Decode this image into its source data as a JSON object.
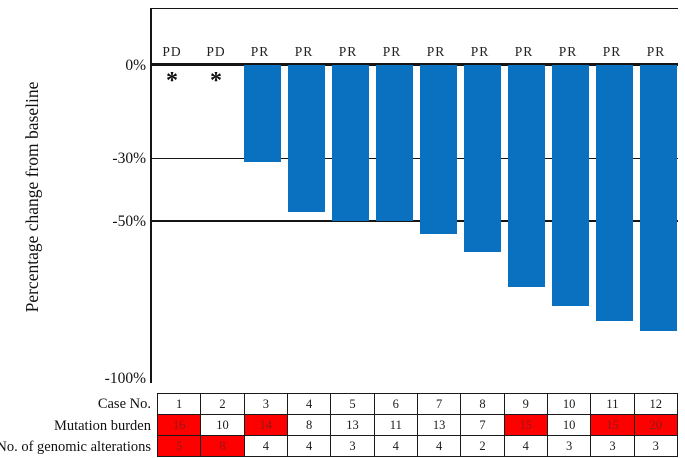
{
  "chart": {
    "y_axis_label": "Percentage change from baseline",
    "y_ticks": [
      {
        "label": "0%",
        "value": 0
      },
      {
        "label": "-30%",
        "value": -30
      },
      {
        "label": "-50%",
        "value": -50
      },
      {
        "label": "-100%",
        "value": -100
      }
    ],
    "reference_lines": [
      {
        "value": 0,
        "weight": 2.5
      },
      {
        "value": -30,
        "weight": 1
      },
      {
        "value": -50,
        "weight": 2
      }
    ],
    "not_evaluable_marker": "*",
    "bar_color": "#0a70c0",
    "line_color": "#151515"
  },
  "chart_data": {
    "type": "bar",
    "title": "",
    "ylabel": "Percentage change from baseline",
    "ylim": [
      -100,
      0
    ],
    "gridlines_at": [
      0,
      -30,
      -50
    ],
    "categories": [
      "1",
      "2",
      "3",
      "4",
      "5",
      "6",
      "7",
      "8",
      "9",
      "10",
      "11",
      "12"
    ],
    "response_labels": [
      "PD",
      "PD",
      "PR",
      "PR",
      "PR",
      "PR",
      "PR",
      "PR",
      "PR",
      "PR",
      "PR",
      "PR"
    ],
    "values": [
      null,
      null,
      -31,
      -47,
      -50,
      -50,
      -54,
      -60,
      -71,
      -77,
      -82,
      -85
    ],
    "not_evaluable_cases": [
      "1",
      "2"
    ]
  },
  "table": {
    "highlight_color": "#fe0000",
    "highlight_text_color": "#8b1a1a",
    "rows": [
      {
        "label": "Case No.",
        "values": [
          "1",
          "2",
          "3",
          "4",
          "5",
          "6",
          "7",
          "8",
          "9",
          "10",
          "11",
          "12"
        ],
        "highlight": [
          false,
          false,
          false,
          false,
          false,
          false,
          false,
          false,
          false,
          false,
          false,
          false
        ]
      },
      {
        "label": "Mutation burden",
        "values": [
          "16",
          "10",
          "14",
          "8",
          "13",
          "11",
          "13",
          "7",
          "15",
          "10",
          "15",
          "20"
        ],
        "highlight": [
          true,
          false,
          true,
          false,
          false,
          false,
          false,
          false,
          true,
          false,
          true,
          true
        ]
      },
      {
        "label": "No. of genomic alterations",
        "values": [
          "5",
          "8",
          "4",
          "4",
          "3",
          "4",
          "4",
          "2",
          "4",
          "3",
          "3",
          "3"
        ],
        "highlight": [
          true,
          true,
          false,
          false,
          false,
          false,
          false,
          false,
          false,
          false,
          false,
          false
        ]
      }
    ]
  }
}
